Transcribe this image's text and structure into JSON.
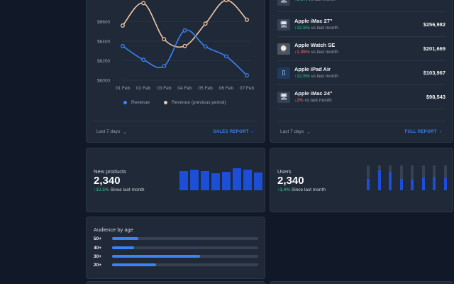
{
  "revenue_card": {
    "legend": {
      "current": "Revenue",
      "previous": "Revenue (previous period)"
    },
    "range": "Last 7 days",
    "link": "SALES REPORT",
    "colors": {
      "current": "#3b82f6",
      "previous": "#f5c6a5"
    }
  },
  "chart_data": {
    "type": "line",
    "categories": [
      "01 Feb",
      "02 Feb",
      "03 Feb",
      "04 Feb",
      "05 Feb",
      "06 Feb",
      "07 Feb"
    ],
    "yticks": [
      "$6000",
      "$6200",
      "$6400",
      "$6600"
    ],
    "ylim": [
      6000,
      6800
    ],
    "series": [
      {
        "name": "Revenue",
        "values": [
          6350,
          6210,
          6145,
          6510,
          6345,
          6245,
          6050
        ]
      },
      {
        "name": "Revenue (previous period)",
        "values": [
          6560,
          6790,
          6420,
          6350,
          6580,
          6820,
          6620
        ]
      }
    ]
  },
  "products_card": {
    "items": [
      {
        "name": "",
        "pct": "2.5%",
        "direction": "up",
        "since": "vs last month",
        "value": "",
        "icon": "imac-icon"
      },
      {
        "name": "Apple iMac 27\"",
        "pct": "12.5%",
        "direction": "up",
        "since": "vs last month",
        "value": "$256,982",
        "icon": "imac-icon"
      },
      {
        "name": "Apple Watch SE",
        "pct": "1.35%",
        "direction": "down",
        "since": "vs last month",
        "value": "$201,669",
        "icon": "watch-icon"
      },
      {
        "name": "Apple iPad Air",
        "pct": "12.5%",
        "direction": "up",
        "since": "vs last month",
        "value": "$103,967",
        "icon": "ipad-icon"
      },
      {
        "name": "Apple iMac 24\"",
        "pct": "2%",
        "direction": "down",
        "since": "vs last month",
        "value": "$98,543",
        "icon": "imac-icon"
      }
    ],
    "range": "Last 7 days",
    "link": "FULL REPORT"
  },
  "new_products": {
    "label": "New products",
    "value": "2,340",
    "pct": "12.5%",
    "since": "Since last month",
    "bars": [
      0.8,
      0.84,
      0.78,
      0.7,
      0.77,
      0.92,
      0.84,
      0.75
    ]
  },
  "users": {
    "label": "Users",
    "value": "2,340",
    "pct": "3,4%",
    "since": "Since last month",
    "bars": [
      0.45,
      0.8,
      0.75,
      0.45,
      0.42,
      0.52,
      0.55,
      0.48
    ]
  },
  "audience": {
    "title": "Audience by age",
    "rows": [
      {
        "label": "50+",
        "pct": 0.18
      },
      {
        "label": "40+",
        "pct": 0.15
      },
      {
        "label": "30+",
        "pct": 0.6
      },
      {
        "label": "20+",
        "pct": 0.3
      }
    ]
  }
}
